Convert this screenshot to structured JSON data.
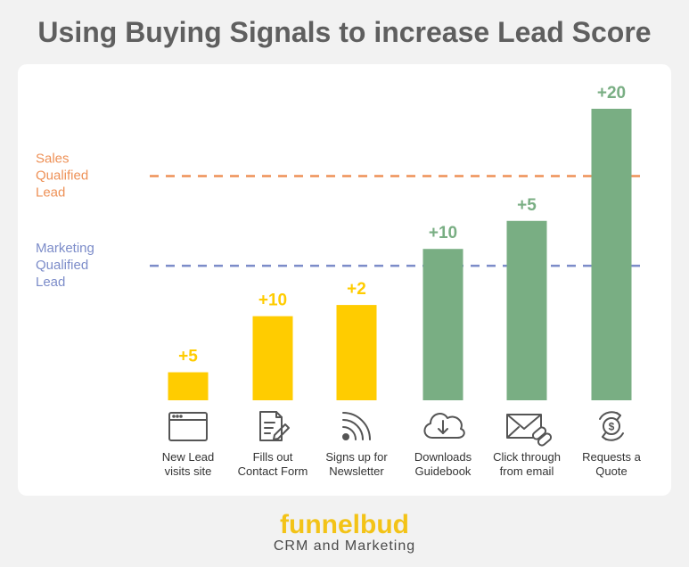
{
  "header": {
    "title": "Using Buying Signals to increase Lead Score"
  },
  "logo": {
    "word": "funnelbud",
    "tagline": "CRM and Marketing"
  },
  "colors": {
    "yellow": "#ffcc00",
    "green": "#79ae83",
    "sales_line": "#ee9157",
    "marketing_line": "#7c8cc9",
    "label_text": "#333333"
  },
  "chart_data": {
    "type": "bar",
    "title": "Using Buying Signals to increase Lead Score",
    "categories": [
      "New Lead visits site",
      "Fills out Contact Form",
      "Signs up for Newsletter",
      "Downloads Guidebook",
      "Click through from email",
      "Requests a Quote"
    ],
    "category_lines": [
      [
        "New Lead",
        "visits site"
      ],
      [
        "Fills out",
        "Contact Form"
      ],
      [
        "Signs up for",
        "Newsletter"
      ],
      [
        "Downloads",
        "Guidebook"
      ],
      [
        "Click through",
        "from email"
      ],
      [
        "Requests a",
        "Quote"
      ]
    ],
    "increments": [
      "+5",
      "+10",
      "+2",
      "+10",
      "+5",
      "+20"
    ],
    "increment_values": [
      5,
      10,
      2,
      10,
      5,
      20
    ],
    "cumulative_values": [
      5,
      15,
      17,
      27,
      32,
      52
    ],
    "bar_colors": [
      "yellow",
      "yellow",
      "yellow",
      "green",
      "green",
      "green"
    ],
    "icons": [
      "browser-window-icon",
      "form-edit-icon",
      "rss-feed-icon",
      "cloud-download-icon",
      "email-link-icon",
      "quote-dollar-icon"
    ],
    "thresholds": [
      {
        "lines": [
          "Sales",
          "Qualified",
          "Lead"
        ],
        "value": 40,
        "color": "sales_line"
      },
      {
        "lines": [
          "Marketing",
          "Qualified",
          "Lead"
        ],
        "value": 24,
        "color": "marketing_line"
      }
    ],
    "ylim": [
      0,
      52
    ],
    "grid": false,
    "xlabel": "",
    "ylabel": ""
  }
}
